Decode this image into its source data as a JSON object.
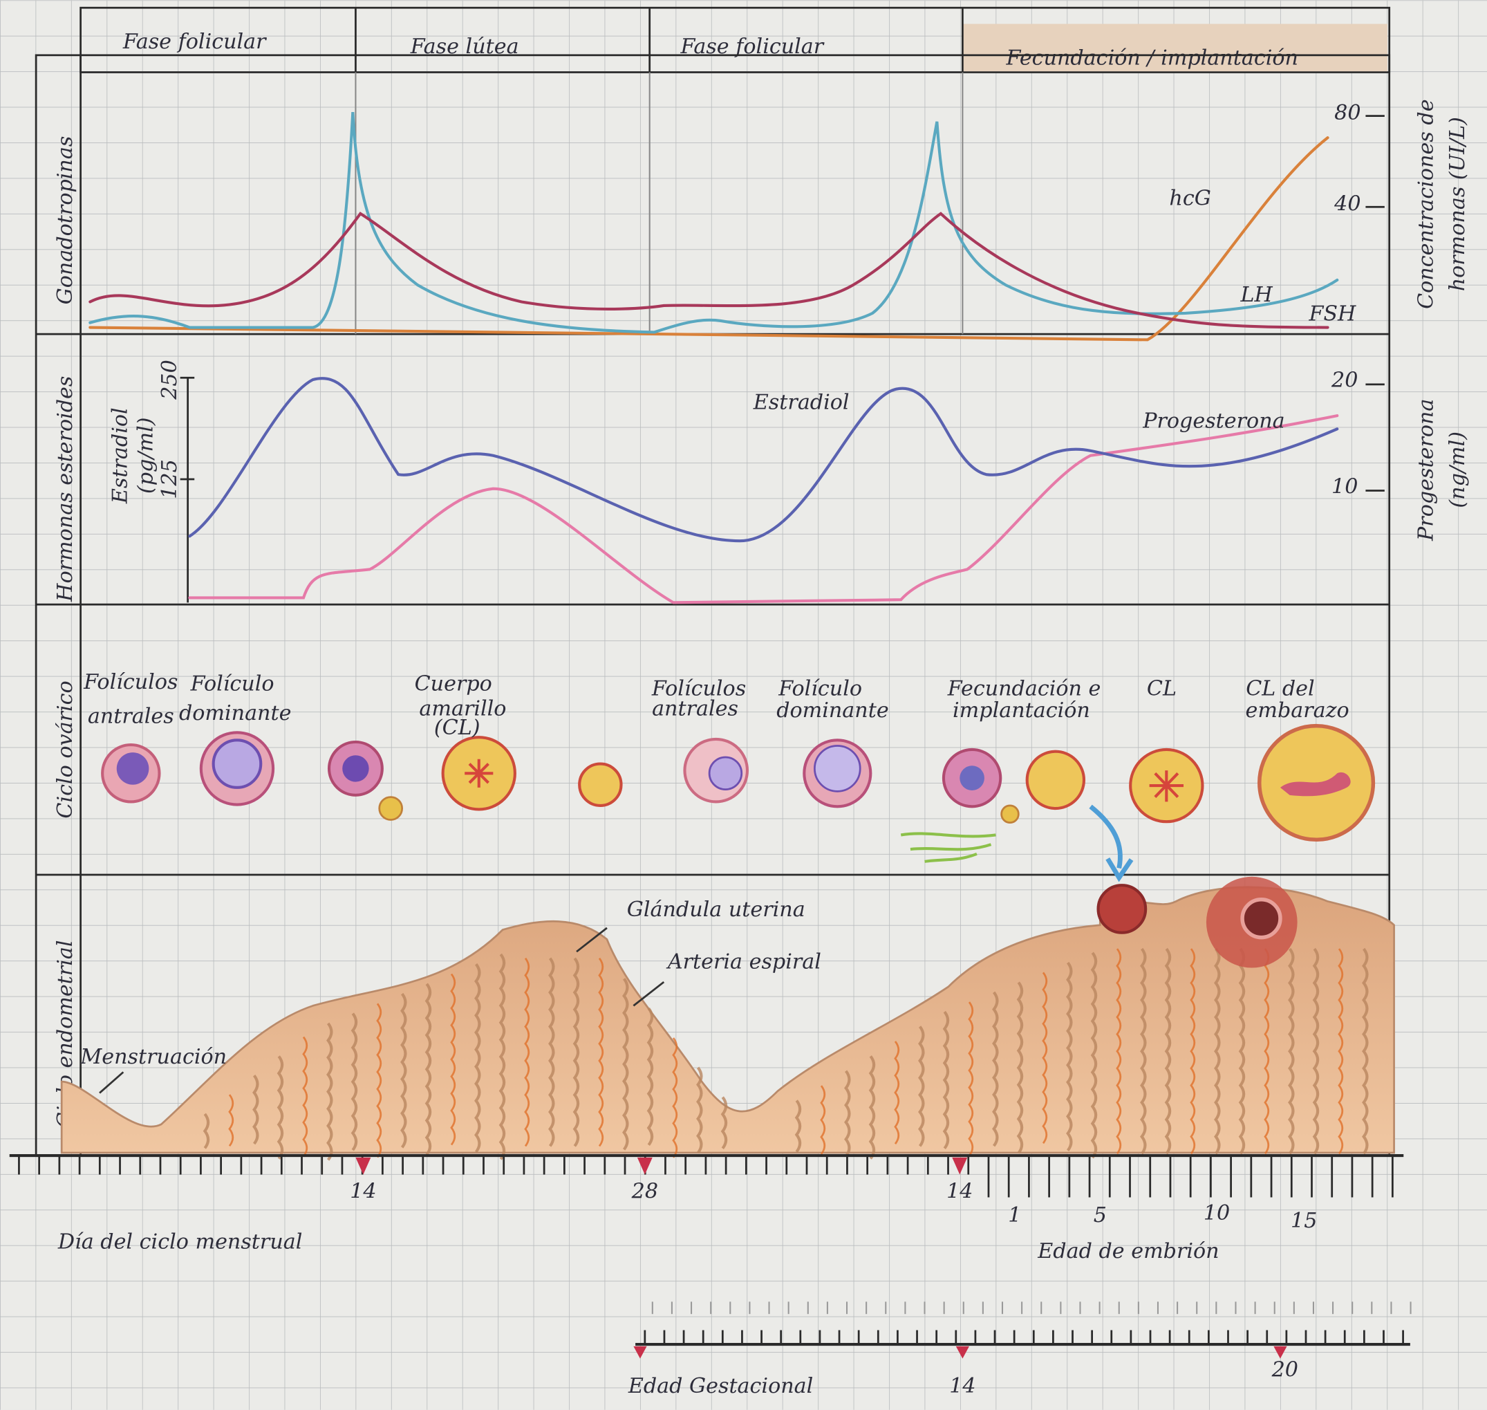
{
  "header": {
    "phases": [
      "Fase folicular",
      "Fase lútea",
      "Fase folicular",
      "Fecundación / implantación"
    ]
  },
  "rows": [
    "Gonadotropinas",
    "Hormonas esteroides",
    "Ciclo ovárico",
    "Ciclo endometrial"
  ],
  "gonadotropins": {
    "axis_title": [
      "Concentraciones de",
      "hormonas (UI/L)"
    ],
    "ticks": [
      80,
      40
    ],
    "labels": [
      "hcG",
      "LH",
      "FSH"
    ]
  },
  "steroids": {
    "left_axis_title": [
      "Estradiol",
      "(pg/ml)"
    ],
    "left_ticks": [
      250,
      125
    ],
    "right_axis_title": [
      "Progesterona",
      "(ng/ml)"
    ],
    "right_ticks": [
      20,
      10
    ],
    "labels": [
      "Estradiol",
      "Progesterona"
    ]
  },
  "ovarian": {
    "labels": [
      [
        "Folículos",
        "antrales"
      ],
      [
        "Folículo",
        "dominante"
      ],
      [
        "Cuerpo",
        "amarillo",
        "(CL)"
      ],
      [
        "Folículos",
        "antrales"
      ],
      [
        "Folículo",
        "dominante"
      ],
      [
        "Fecundación e",
        "implantación"
      ],
      [
        "CL"
      ],
      [
        "CL del",
        "embarazo"
      ]
    ]
  },
  "endometrial": {
    "labels": [
      "Glándula uterina",
      "Arteria espiral",
      "Menstruación"
    ]
  },
  "axes": {
    "cycle_ticks": [
      14,
      28,
      14
    ],
    "cycle_title": "Día del ciclo menstrual",
    "embryo_ticks": [
      1,
      5,
      10,
      15
    ],
    "embryo_title": "Edad de embrión",
    "gestational_ticks": [
      14,
      20
    ],
    "gestational_title": "Edad Gestacional"
  }
}
